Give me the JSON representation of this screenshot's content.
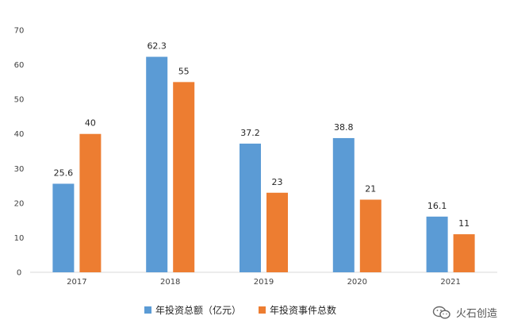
{
  "chart_data": {
    "type": "bar",
    "categories": [
      "2017",
      "2018",
      "2019",
      "2020",
      "2021"
    ],
    "series": [
      {
        "name": "年投资总额（亿元）",
        "values": [
          25.6,
          62.3,
          37.2,
          38.8,
          16.1
        ],
        "color": "#5b9bd5"
      },
      {
        "name": "年投资事件总数",
        "values": [
          40,
          55,
          23,
          21,
          11
        ],
        "color": "#ed7d31"
      }
    ],
    "ylim": [
      0,
      70
    ],
    "yticks": [
      0,
      10,
      20,
      30,
      40,
      50,
      60,
      70
    ],
    "gridlines": false,
    "legend_position": "bottom",
    "data_labels": true
  },
  "watermark": {
    "text": "火石创造",
    "icon": "wechat-icon"
  }
}
